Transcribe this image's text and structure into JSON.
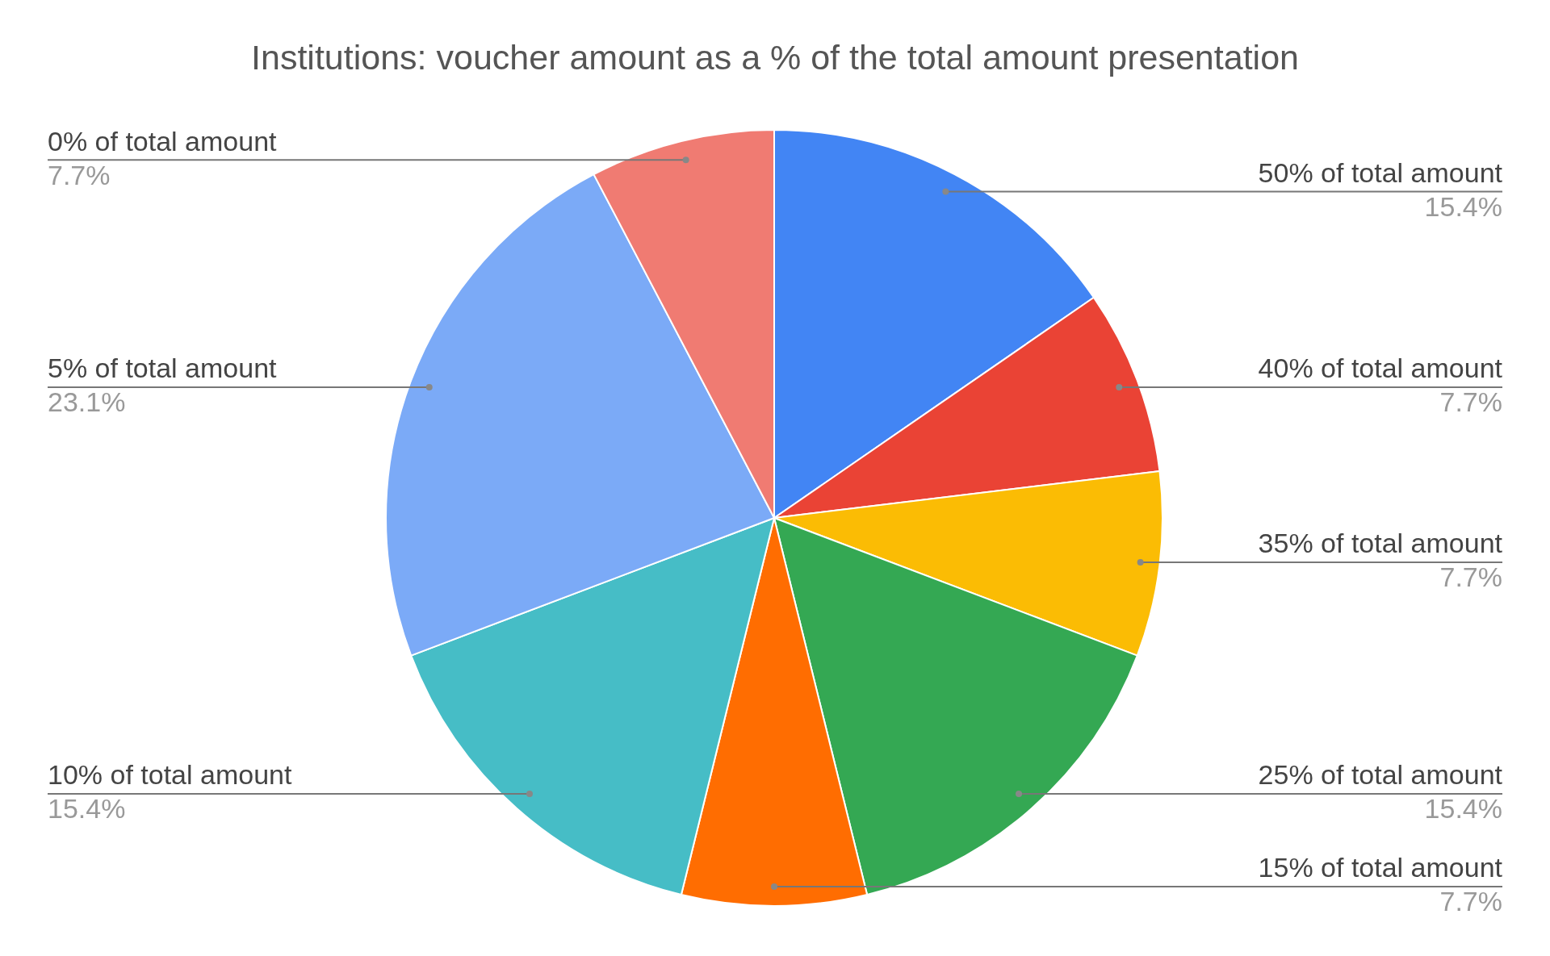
{
  "chart_data": {
    "type": "pie",
    "title": "Institutions: voucher amount as a % of the total amount presentation",
    "categories": [
      "50% of total amount",
      "40% of total amount",
      "35% of total amount",
      "25% of total amount",
      "15% of total amount",
      "10% of total amount",
      "5% of total amount",
      "0% of total amount"
    ],
    "values": [
      15.4,
      7.7,
      7.7,
      15.4,
      7.7,
      15.4,
      23.1,
      7.7
    ],
    "value_labels": [
      "15.4%",
      "7.7%",
      "7.7%",
      "15.4%",
      "7.7%",
      "15.4%",
      "23.1%",
      "7.7%"
    ],
    "colors": [
      "#4285f4",
      "#ea4335",
      "#fbbc04",
      "#34a853",
      "#ff6d01",
      "#46bdc6",
      "#7baaf7",
      "#f07b72"
    ],
    "legend": false
  }
}
